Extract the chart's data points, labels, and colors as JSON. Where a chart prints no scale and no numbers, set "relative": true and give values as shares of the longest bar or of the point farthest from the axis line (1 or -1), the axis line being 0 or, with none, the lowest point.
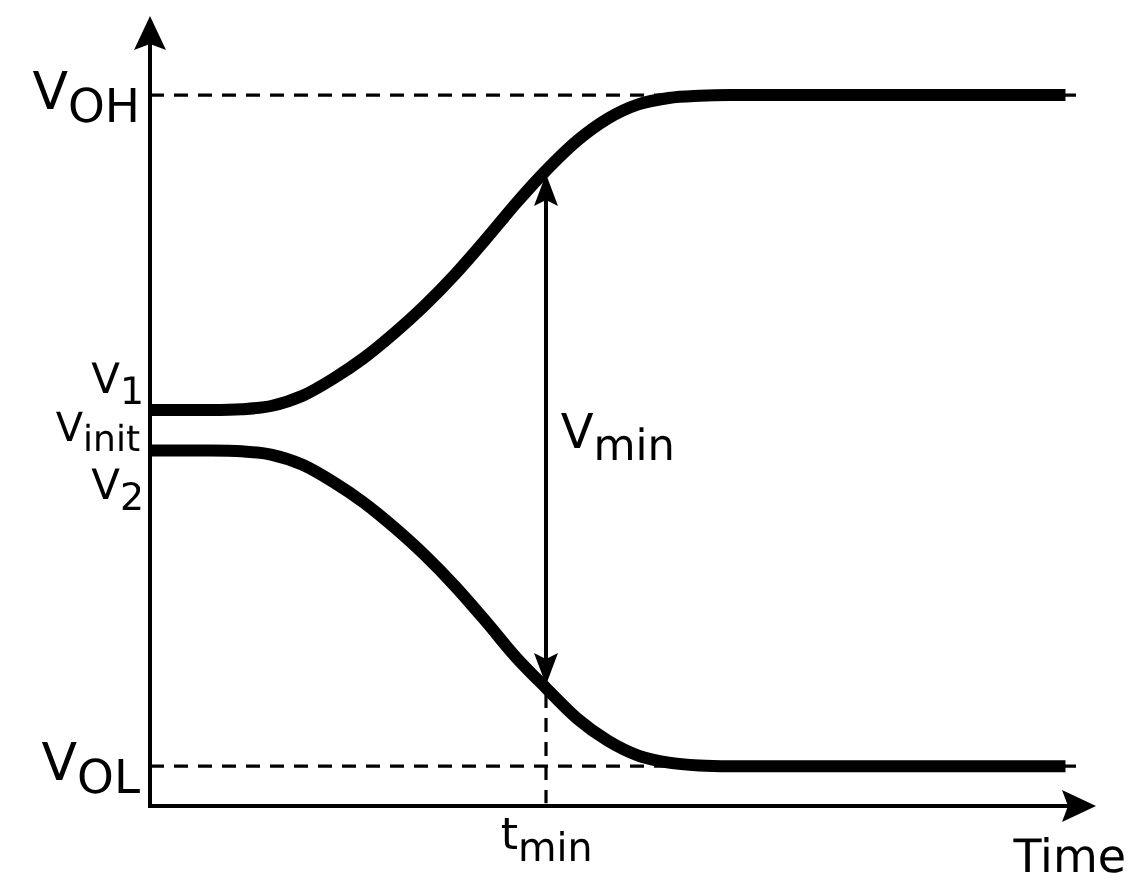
{
  "chart_data": {
    "type": "line",
    "relative": true,
    "xlabel": "Time",
    "categories": [
      null,
      null,
      null,
      null,
      null,
      null,
      null,
      null,
      null,
      null,
      null,
      null,
      null,
      null,
      null,
      null,
      null,
      null,
      null,
      null,
      null,
      null,
      null,
      null,
      null,
      null,
      null,
      null,
      null,
      null,
      null,
      null
    ],
    "series": [
      {
        "name": "V$_{1}$",
        "color": "#000000",
        "values": [
          0.557,
          0.557,
          0.557,
          0.558,
          0.563,
          0.577,
          0.601,
          0.63,
          0.665,
          0.704,
          0.748,
          0.797,
          0.848,
          0.895,
          0.936,
          0.967,
          0.987,
          0.996,
          0.999,
          1,
          1,
          1,
          1,
          1,
          1,
          1,
          1,
          1,
          1,
          1,
          1,
          null
        ]
      },
      {
        "name": "V$_{2}$",
        "color": "#000000",
        "values": [
          0.5,
          0.5,
          0.5,
          0.499,
          0.494,
          0.48,
          0.456,
          0.427,
          0.392,
          0.353,
          0.309,
          0.26,
          0.209,
          0.165,
          0.123,
          0.092,
          0.071,
          0.061,
          0.057,
          0.056,
          0.056,
          0.056,
          0.056,
          0.056,
          0.056,
          0.056,
          0.056,
          0.056,
          0.056,
          0.056,
          0.056,
          null
        ]
      }
    ],
    "ref_lines": [
      {
        "axis": "y",
        "value": 1,
        "label": "V$_{OH}$",
        "line_style": "dashed",
        "color": "#000000"
      },
      {
        "axis": "y",
        "value": 0.056,
        "label": "V$_{OL}$",
        "line_style": "dashed",
        "color": "#000000"
      }
    ],
    "annotations": [
      "V$_{init}$",
      "V$_{min}$",
      "t$_{min}$"
    ],
    "marker": "none",
    "line_style": "solid"
  }
}
